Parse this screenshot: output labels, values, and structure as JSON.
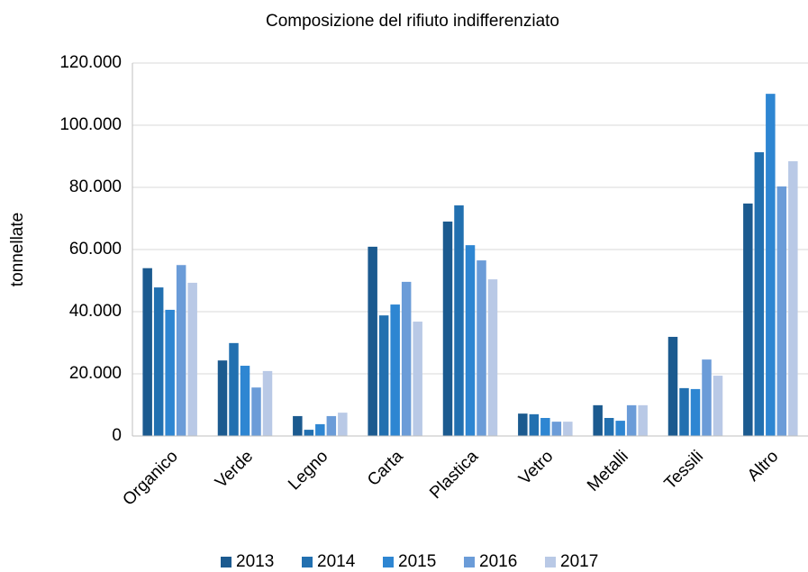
{
  "chart_data": {
    "type": "bar",
    "title": "Composizione del rifiuto indifferenziato",
    "y_label": "tonnellate",
    "categories": [
      "Organico",
      "Verde",
      "Legno",
      "Carta",
      "Plastica",
      "Vetro",
      "Metalli",
      "Tessili",
      "Altro"
    ],
    "series": [
      {
        "name": "2013",
        "color": "#1b5a8f",
        "values": [
          54000,
          24300,
          6400,
          60900,
          69000,
          7200,
          9900,
          31900,
          74800
        ]
      },
      {
        "name": "2014",
        "color": "#2270b0",
        "values": [
          47800,
          29900,
          2000,
          38800,
          74200,
          7000,
          5800,
          15400,
          91300
        ]
      },
      {
        "name": "2015",
        "color": "#2e86d2",
        "values": [
          40600,
          22600,
          3800,
          42300,
          61400,
          5800,
          4900,
          15100,
          110100
        ]
      },
      {
        "name": "2016",
        "color": "#6b9cd8",
        "values": [
          55000,
          15600,
          6400,
          49600,
          56500,
          4600,
          9900,
          24600,
          80300
        ]
      },
      {
        "name": "2017",
        "color": "#b9c9e6",
        "values": [
          49300,
          20900,
          7500,
          36800,
          50400,
          4600,
          9900,
          19400,
          88400
        ]
      }
    ],
    "ylim": [
      0,
      120000
    ],
    "yticks": [
      0,
      {
        "value": 20000,
        "label": "20.000"
      },
      {
        "value": 40000,
        "label": "40.000"
      },
      {
        "value": 60000,
        "label": "60.000"
      },
      {
        "value": 80000,
        "label": "80.000"
      },
      {
        "value": 100000,
        "label": "100.000"
      },
      {
        "value": 120000,
        "label": "120.000"
      }
    ],
    "grid": true,
    "legend": "bottom"
  }
}
